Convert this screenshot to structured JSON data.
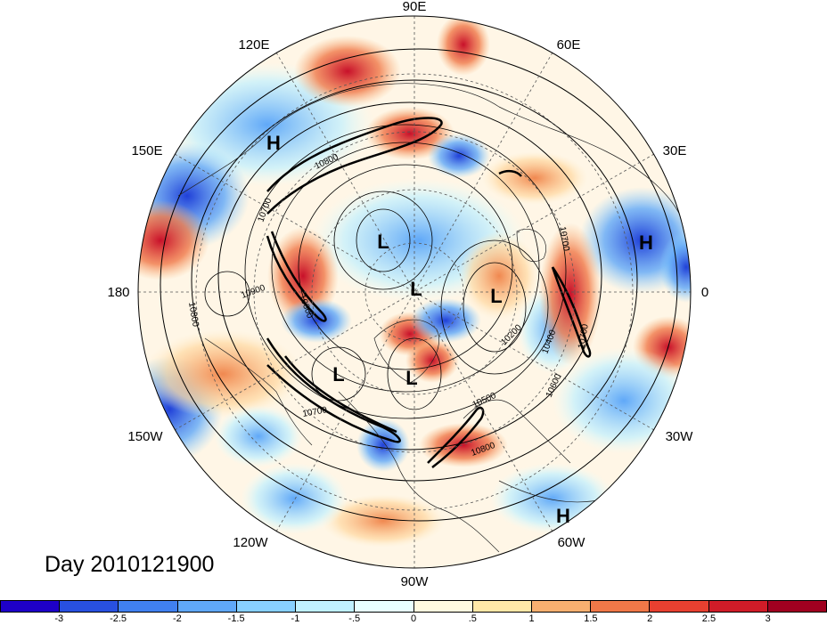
{
  "map": {
    "projection": "north-polar-stereographic",
    "longitude_labels": [
      {
        "text": "90E",
        "lon": 90
      },
      {
        "text": "60E",
        "lon": 60
      },
      {
        "text": "30E",
        "lon": 30
      },
      {
        "text": "0",
        "lon": 0
      },
      {
        "text": "30W",
        "lon": -30
      },
      {
        "text": "60W",
        "lon": -60
      },
      {
        "text": "90W",
        "lon": -90
      },
      {
        "text": "120W",
        "lon": -120
      },
      {
        "text": "150W",
        "lon": -150
      },
      {
        "text": "180",
        "lon": 180
      },
      {
        "text": "150E",
        "lon": 150
      },
      {
        "text": "120E",
        "lon": 120
      }
    ],
    "pressure_systems": [
      {
        "type": "L",
        "lon": 95,
        "lat": 72
      },
      {
        "type": "L",
        "lon": 0,
        "lat": 89
      },
      {
        "type": "L",
        "lon": -10,
        "lat": 70
      },
      {
        "type": "L",
        "lon": -150,
        "lat": 65
      },
      {
        "type": "L",
        "lon": -100,
        "lat": 72
      },
      {
        "type": "H",
        "lon": 130,
        "lat": 40
      },
      {
        "type": "H",
        "lon": 20,
        "lat": 40
      },
      {
        "type": "H",
        "lon": -55,
        "lat": 22
      }
    ],
    "contour_labels": [
      "10800",
      "10700",
      "10600",
      "10800",
      "10900",
      "10700",
      "10700",
      "10200",
      "10400",
      "10500",
      "10600",
      "10700",
      "10800"
    ],
    "colors": {
      "ocean_bg": "#ffffff",
      "coast": "#000000"
    }
  },
  "title": {
    "text": "Day 2010121900"
  },
  "colorbar": {
    "colors": [
      "#1e00c8",
      "#2850e0",
      "#4080f0",
      "#60a8f8",
      "#88d0ff",
      "#c0f0ff",
      "#e8ffff",
      "#fffae0",
      "#ffe8a8",
      "#f8b070",
      "#f07848",
      "#e84030",
      "#d01c28",
      "#a00020"
    ],
    "ticks": [
      "-3",
      "-2.5",
      "-2",
      "-1.5",
      "-1",
      "-.5",
      "0",
      ".5",
      "1",
      "1.5",
      "2",
      "2.5",
      "3"
    ]
  }
}
